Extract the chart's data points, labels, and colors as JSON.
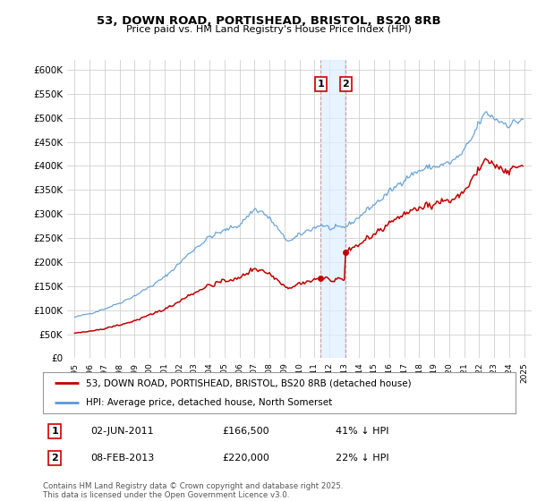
{
  "title": "53, DOWN ROAD, PORTISHEAD, BRISTOL, BS20 8RB",
  "subtitle": "Price paid vs. HM Land Registry's House Price Index (HPI)",
  "hpi_label": "HPI: Average price, detached house, North Somerset",
  "property_label": "53, DOWN ROAD, PORTISHEAD, BRISTOL, BS20 8RB (detached house)",
  "hpi_color": "#5b9bd5",
  "property_color": "#c00000",
  "annotation1_date": "02-JUN-2011",
  "annotation1_price": "£166,500",
  "annotation1_note": "41% ↓ HPI",
  "annotation2_date": "08-FEB-2013",
  "annotation2_price": "£220,000",
  "annotation2_note": "22% ↓ HPI",
  "vline1_x": 2011.42,
  "vline2_x": 2013.1,
  "footer": "Contains HM Land Registry data © Crown copyright and database right 2025.\nThis data is licensed under the Open Government Licence v3.0.",
  "ylim": [
    0,
    620000
  ],
  "xlim": [
    1994.5,
    2025.5
  ],
  "background_color": "#ffffff",
  "grid_color": "#d0d0d0"
}
